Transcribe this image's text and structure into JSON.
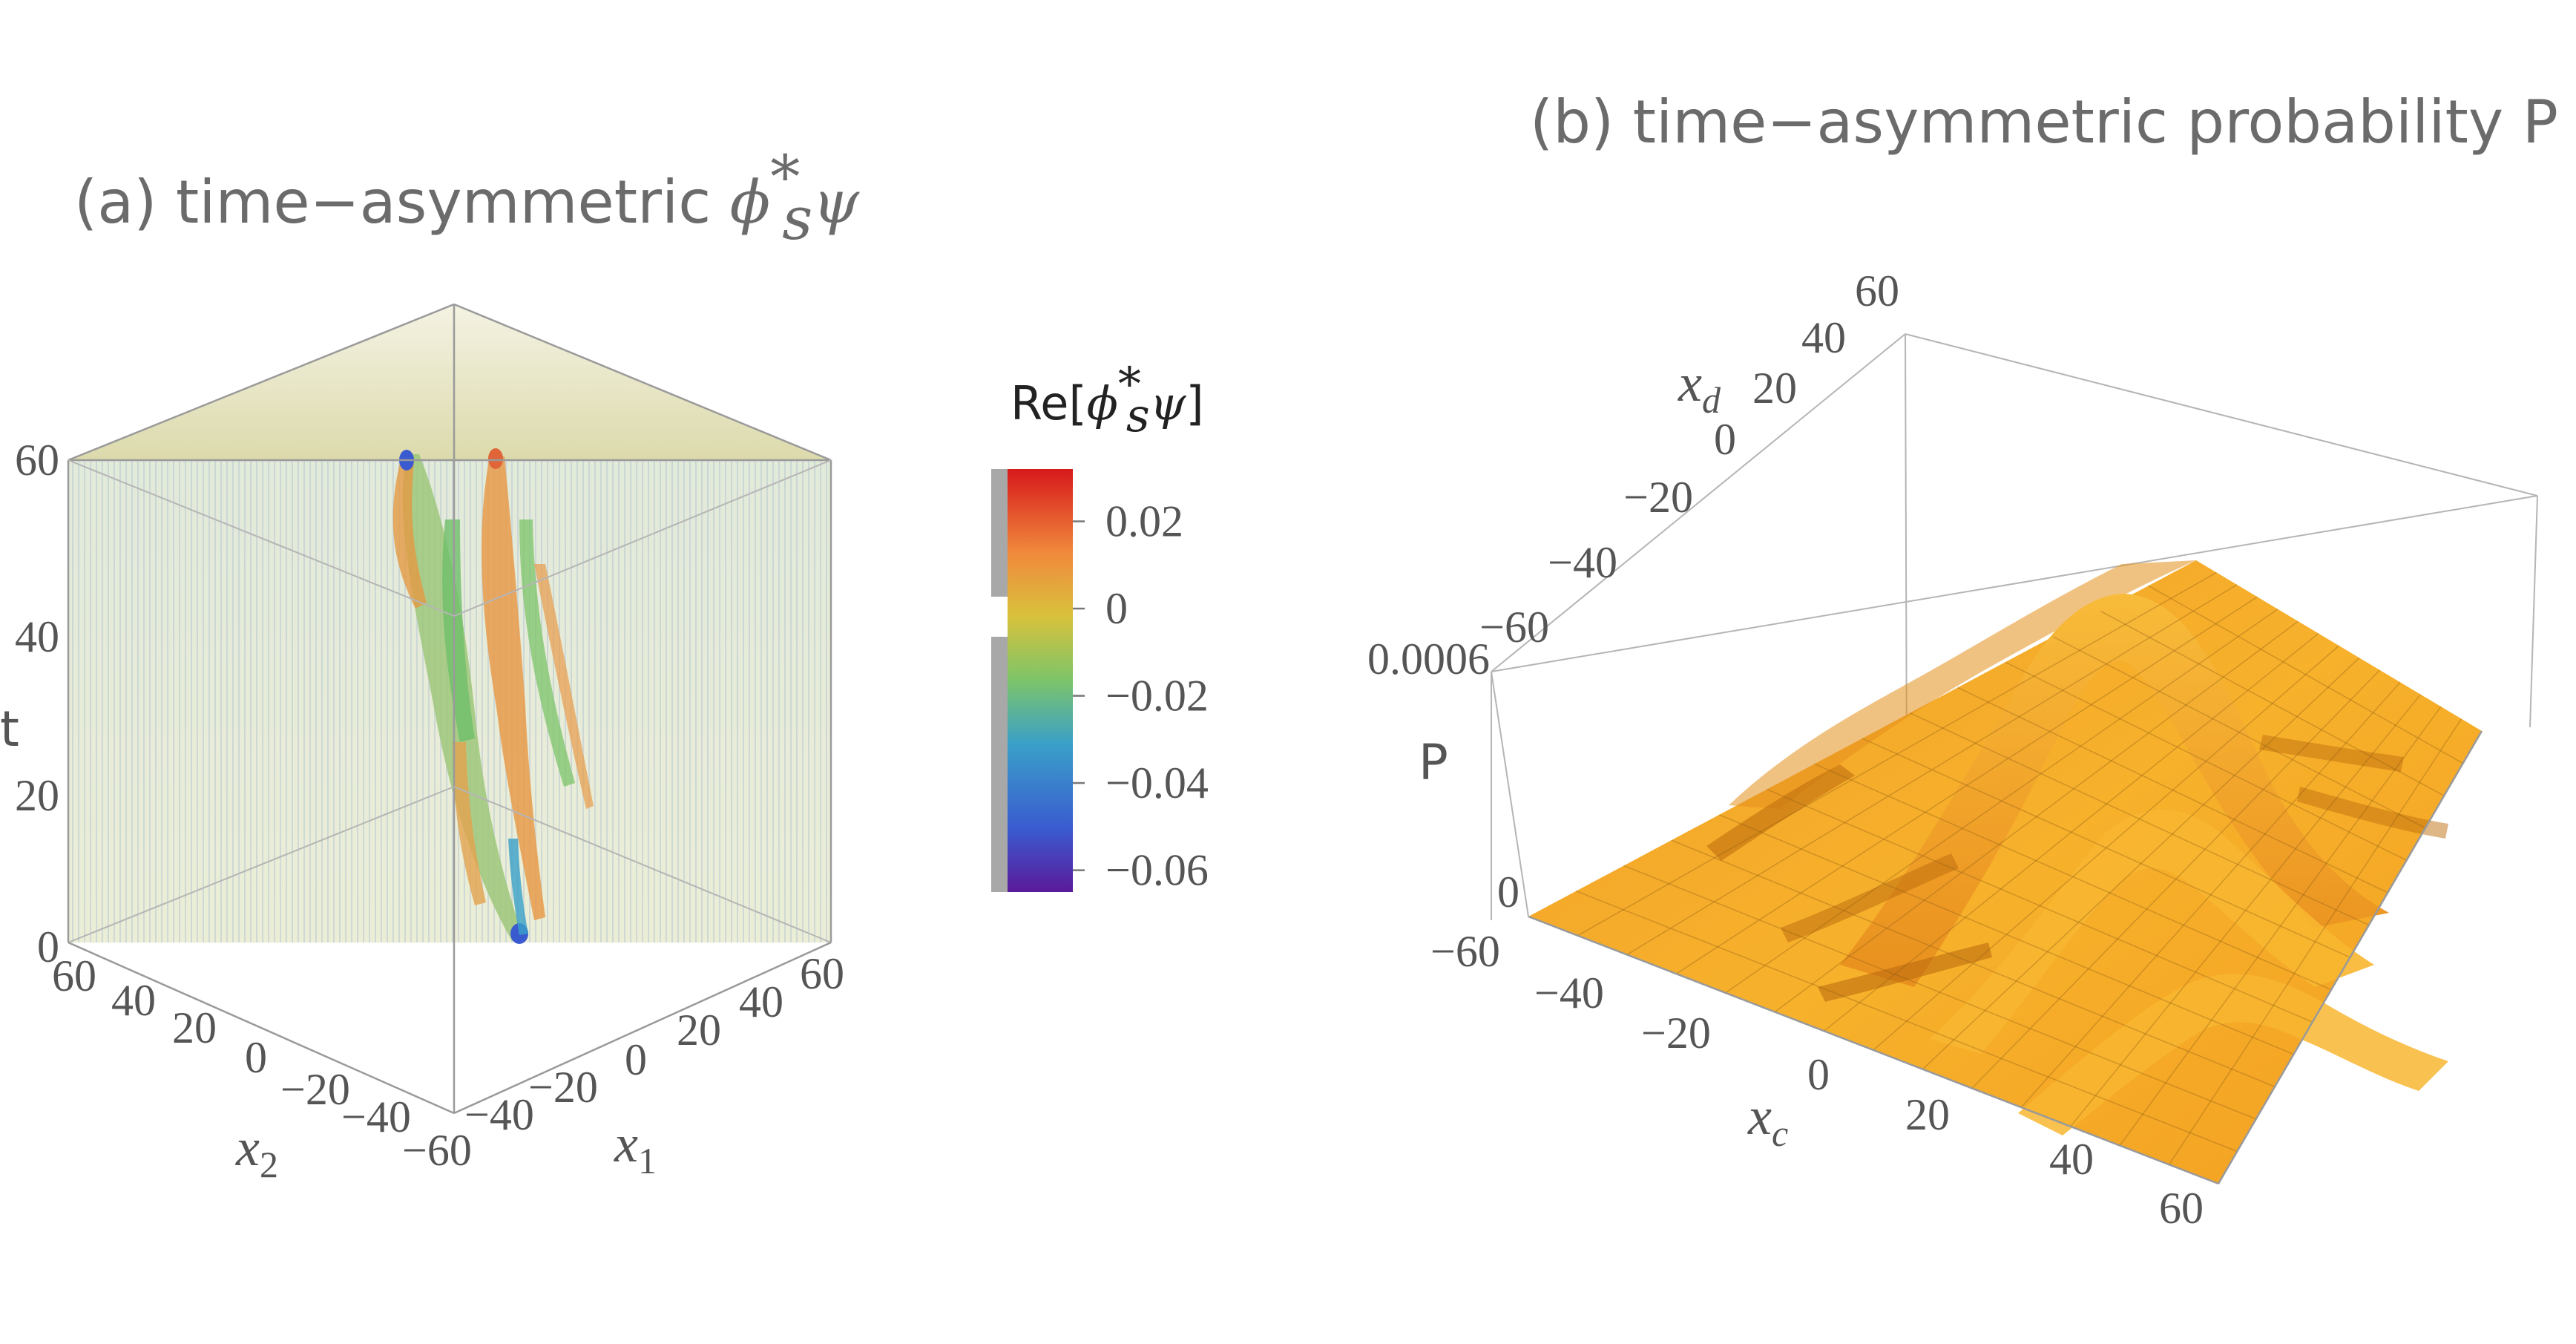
{
  "panel_a": {
    "title_text": "(a) time−asymmetric ",
    "title_math": "ϕ",
    "title_sup": "*",
    "title_sub": "s",
    "title_math2": "ψ"
  },
  "panel_b": {
    "title": "(b) time−asymmetric probability P"
  },
  "colorbar": {
    "title_prefix": "Re[",
    "title_math": "ϕ",
    "title_sup": "*",
    "title_sub": "s",
    "title_math2": "ψ",
    "title_suffix": "]",
    "ticks": [
      "0.02",
      "0",
      "−0.02",
      "−0.04",
      "−0.06"
    ],
    "colors": [
      "#d7191c",
      "#f08a3c",
      "#c8c83a",
      "#6cc06a",
      "#3aa0c8",
      "#3a5bd0",
      "#5a1a9a"
    ]
  },
  "chart_data": [
    {
      "type": "volume",
      "title": "(a) time−asymmetric ϕ*sψ",
      "axes": {
        "x1": {
          "label": "x1",
          "range": [
            -60,
            60
          ],
          "ticks": [
            "−60",
            "−40",
            "−20",
            "0",
            "20",
            "40",
            "60"
          ]
        },
        "x2": {
          "label": "x2",
          "range": [
            -60,
            60
          ],
          "ticks": [
            "−40",
            "−20",
            "0",
            "20",
            "40",
            "60"
          ]
        },
        "t": {
          "label": "t",
          "range": [
            0,
            60
          ],
          "ticks": [
            "0",
            "20",
            "40",
            "60"
          ]
        }
      },
      "colorbar": {
        "label": "Re[ϕ*sψ]",
        "range": [
          -0.065,
          0.032
        ],
        "ticks": [
          0.02,
          0,
          -0.02,
          -0.04,
          -0.06
        ]
      }
    },
    {
      "type": "surface",
      "title": "(b) time−asymmetric probability P",
      "axes": {
        "xc": {
          "label": "xc",
          "range": [
            -60,
            60
          ],
          "ticks": [
            "−60",
            "−40",
            "−20",
            "0",
            "20",
            "40",
            "60"
          ]
        },
        "xd": {
          "label": "xd",
          "range": [
            -60,
            60
          ],
          "ticks": [
            "−60",
            "−40",
            "−20",
            "0",
            "20",
            "40",
            "60"
          ]
        },
        "P": {
          "label": "P",
          "range": [
            0,
            0.0006
          ],
          "ticks": [
            "0",
            "0.0006"
          ]
        }
      },
      "color": "#f5a623"
    }
  ]
}
